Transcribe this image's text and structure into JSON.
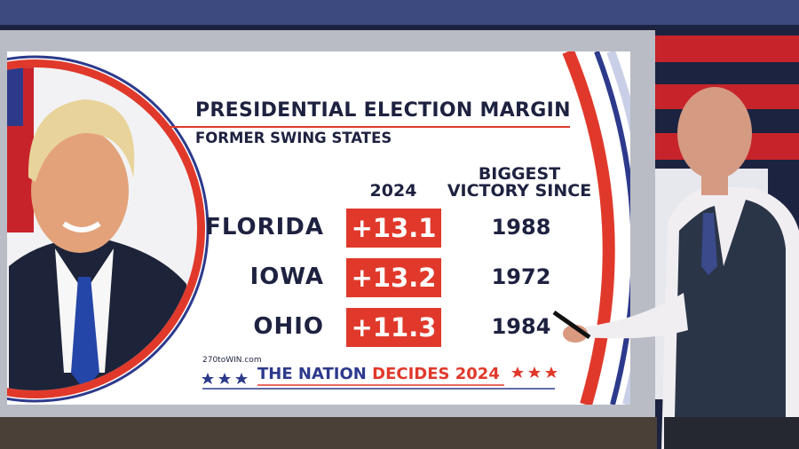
{
  "header": {
    "title": "PRESIDENTIAL ELECTION MARGIN",
    "subtitle": "FORMER SWING STATES"
  },
  "table": {
    "columns": [
      {
        "lines": [
          "2024"
        ]
      },
      {
        "lines": [
          "BIGGEST",
          "VICTORY SINCE"
        ]
      }
    ],
    "rows": [
      [
        "FLORIDA",
        "+13.1",
        "1988"
      ],
      [
        "IOWA",
        "+13.2",
        "1972"
      ],
      [
        "OHIO",
        "+11.3",
        "1984"
      ]
    ]
  },
  "source": "270toWIN.com",
  "footer": {
    "brand": "THE NATION",
    "highlight": "DECIDES 2024"
  }
}
